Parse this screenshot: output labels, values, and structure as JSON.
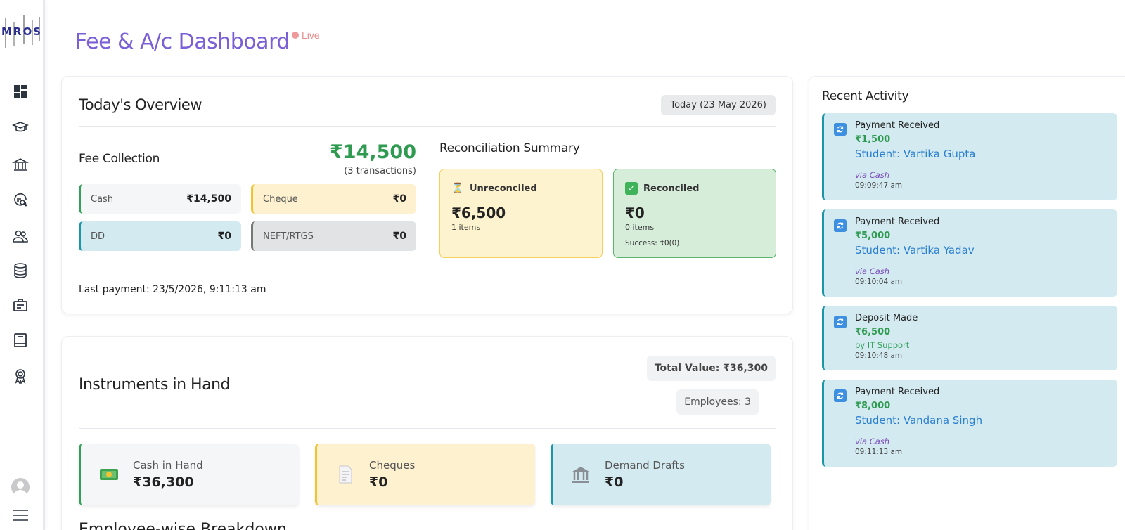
{
  "brand": {
    "logo_text": "MROS"
  },
  "sidebar": {
    "items": [
      {
        "icon": "dashboard-icon"
      },
      {
        "icon": "graduation-cap-icon"
      },
      {
        "icon": "bank-icon"
      },
      {
        "icon": "chat-search-icon"
      },
      {
        "icon": "users-icon"
      },
      {
        "icon": "database-icon"
      },
      {
        "icon": "briefcase-icon"
      },
      {
        "icon": "book-icon"
      },
      {
        "icon": "award-icon"
      }
    ]
  },
  "header": {
    "title": "Fee & A/c Dashboard",
    "live_label": "Live"
  },
  "overview": {
    "title": "Today's Overview",
    "date_badge": "Today (23 May 2026)",
    "fee_collection": {
      "label": "Fee Collection",
      "amount": "₹14,500",
      "transactions": "(3 transactions)",
      "modes": [
        {
          "label": "Cash",
          "value": "₹14,500"
        },
        {
          "label": "Cheque",
          "value": "₹0"
        },
        {
          "label": "DD",
          "value": "₹0"
        },
        {
          "label": "NEFT/RTGS",
          "value": "₹0"
        }
      ],
      "last_payment": "Last payment: 23/5/2026, 9:11:13 am"
    },
    "reconciliation": {
      "title": "Reconciliation Summary",
      "unreconciled": {
        "label": "Unreconciled",
        "amount": "₹6,500",
        "items": "1 items"
      },
      "reconciled": {
        "label": "Reconciled",
        "amount": "₹0",
        "items": "0 items",
        "success": "Success: ₹0(0)"
      }
    }
  },
  "instruments": {
    "title": "Instruments in Hand",
    "total_value": "Total Value: ₹36,300",
    "employees": "Employees: 3",
    "boxes": [
      {
        "label": "Cash in Hand",
        "value": "₹36,300",
        "icon": "cash-icon"
      },
      {
        "label": "Cheques",
        "value": "₹0",
        "icon": "document-icon"
      },
      {
        "label": "Demand Drafts",
        "value": "₹0",
        "icon": "bank-building-icon"
      }
    ],
    "next_section_title": "Employee-wise Breakdown"
  },
  "activity": {
    "title": "Recent Activity",
    "items": [
      {
        "type": "Payment Received",
        "amount": "₹1,500",
        "student": "Student: Vartika Gupta",
        "via": "via Cash",
        "time": "09:09:47 am"
      },
      {
        "type": "Payment Received",
        "amount": "₹5,000",
        "student": "Student: Vartika Yadav",
        "via": "via Cash",
        "time": "09:10:04 am"
      },
      {
        "type": "Deposit Made",
        "amount": "₹6,500",
        "by": "by IT Support",
        "time": "09:10:48 am"
      },
      {
        "type": "Payment Received",
        "amount": "₹8,000",
        "student": "Student: Vandana Singh",
        "via": "via Cash",
        "time": "09:11:13 am"
      }
    ]
  },
  "colors": {
    "title": "#7b5fd6",
    "success": "#2e9b50",
    "link": "#2b7fd1",
    "cash": "#33a05a",
    "cheque": "#f2c231",
    "dd": "#1b95a8"
  }
}
